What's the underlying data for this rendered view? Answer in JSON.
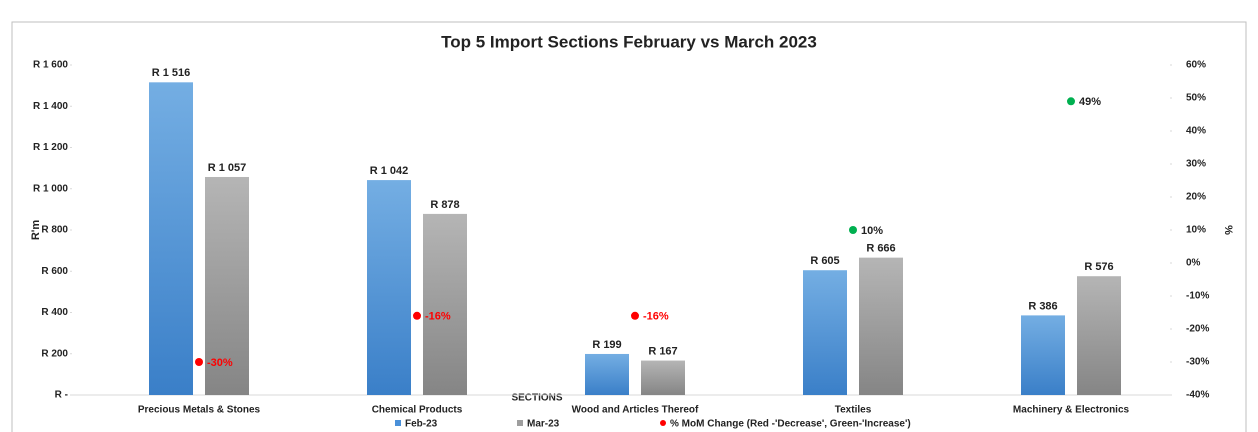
{
  "chart_data": {
    "type": "bar",
    "title": "Top 5 Import Sections February vs March 2023",
    "x_label": "SECTIONS",
    "y_label": "R'm",
    "y2_label": "%",
    "categories": [
      "Precious Metals & Stones",
      "Chemical Products",
      "Wood and Articles Thereof",
      "Textiles",
      "Machinery & Electronics"
    ],
    "series": [
      {
        "name": "Feb-23",
        "type": "bar",
        "color": "#4a90d9",
        "values": [
          1516,
          1042,
          199,
          605,
          386
        ],
        "value_labels": [
          "R 1 516",
          "R 1 042",
          "R 199",
          "R 605",
          "R 386"
        ]
      },
      {
        "name": "Mar-23",
        "type": "bar",
        "color": "#9e9e9e",
        "values": [
          1057,
          878,
          167,
          666,
          576
        ],
        "value_labels": [
          "R 1 057",
          "R 878",
          "R 167",
          "R 666",
          "R 576"
        ]
      },
      {
        "name": "% MoM Change (Red -'Decrease', Green-'Increase')",
        "type": "scatter",
        "axis": "y2",
        "color": "#ff0000",
        "colors": [
          "#ff0000",
          "#ff0000",
          "#ff0000",
          "#00b050",
          "#00b050"
        ],
        "label_colors": [
          "#ff0000",
          "#ff0000",
          "#ff0000",
          "#222222",
          "#222222"
        ],
        "values": [
          -30,
          -16,
          -16,
          10,
          49
        ],
        "value_labels": [
          "-30%",
          "-16%",
          "-16%",
          "10%",
          "49%"
        ]
      }
    ],
    "ylim": [
      0,
      1600
    ],
    "yticks": [
      {
        "value": 0,
        "label": "R -"
      },
      {
        "value": 200,
        "label": "R 200"
      },
      {
        "value": 400,
        "label": "R 400"
      },
      {
        "value": 600,
        "label": "R 600"
      },
      {
        "value": 800,
        "label": "R 800"
      },
      {
        "value": 1000,
        "label": "R 1 000"
      },
      {
        "value": 1200,
        "label": "R 1 200"
      },
      {
        "value": 1400,
        "label": "R 1 400"
      },
      {
        "value": 1600,
        "label": "R 1 600"
      }
    ],
    "y2lim": [
      -40,
      60
    ],
    "y2ticks": [
      {
        "value": -40,
        "label": "-40%"
      },
      {
        "value": -30,
        "label": "-30%"
      },
      {
        "value": -20,
        "label": "-20%"
      },
      {
        "value": -10,
        "label": "-10%"
      },
      {
        "value": 0,
        "label": "0%"
      },
      {
        "value": 10,
        "label": "10%"
      },
      {
        "value": 20,
        "label": "20%"
      },
      {
        "value": 30,
        "label": "30%"
      },
      {
        "value": 40,
        "label": "40%"
      },
      {
        "value": 50,
        "label": "50%"
      },
      {
        "value": 60,
        "label": "60%"
      }
    ],
    "legend": "bottom"
  }
}
